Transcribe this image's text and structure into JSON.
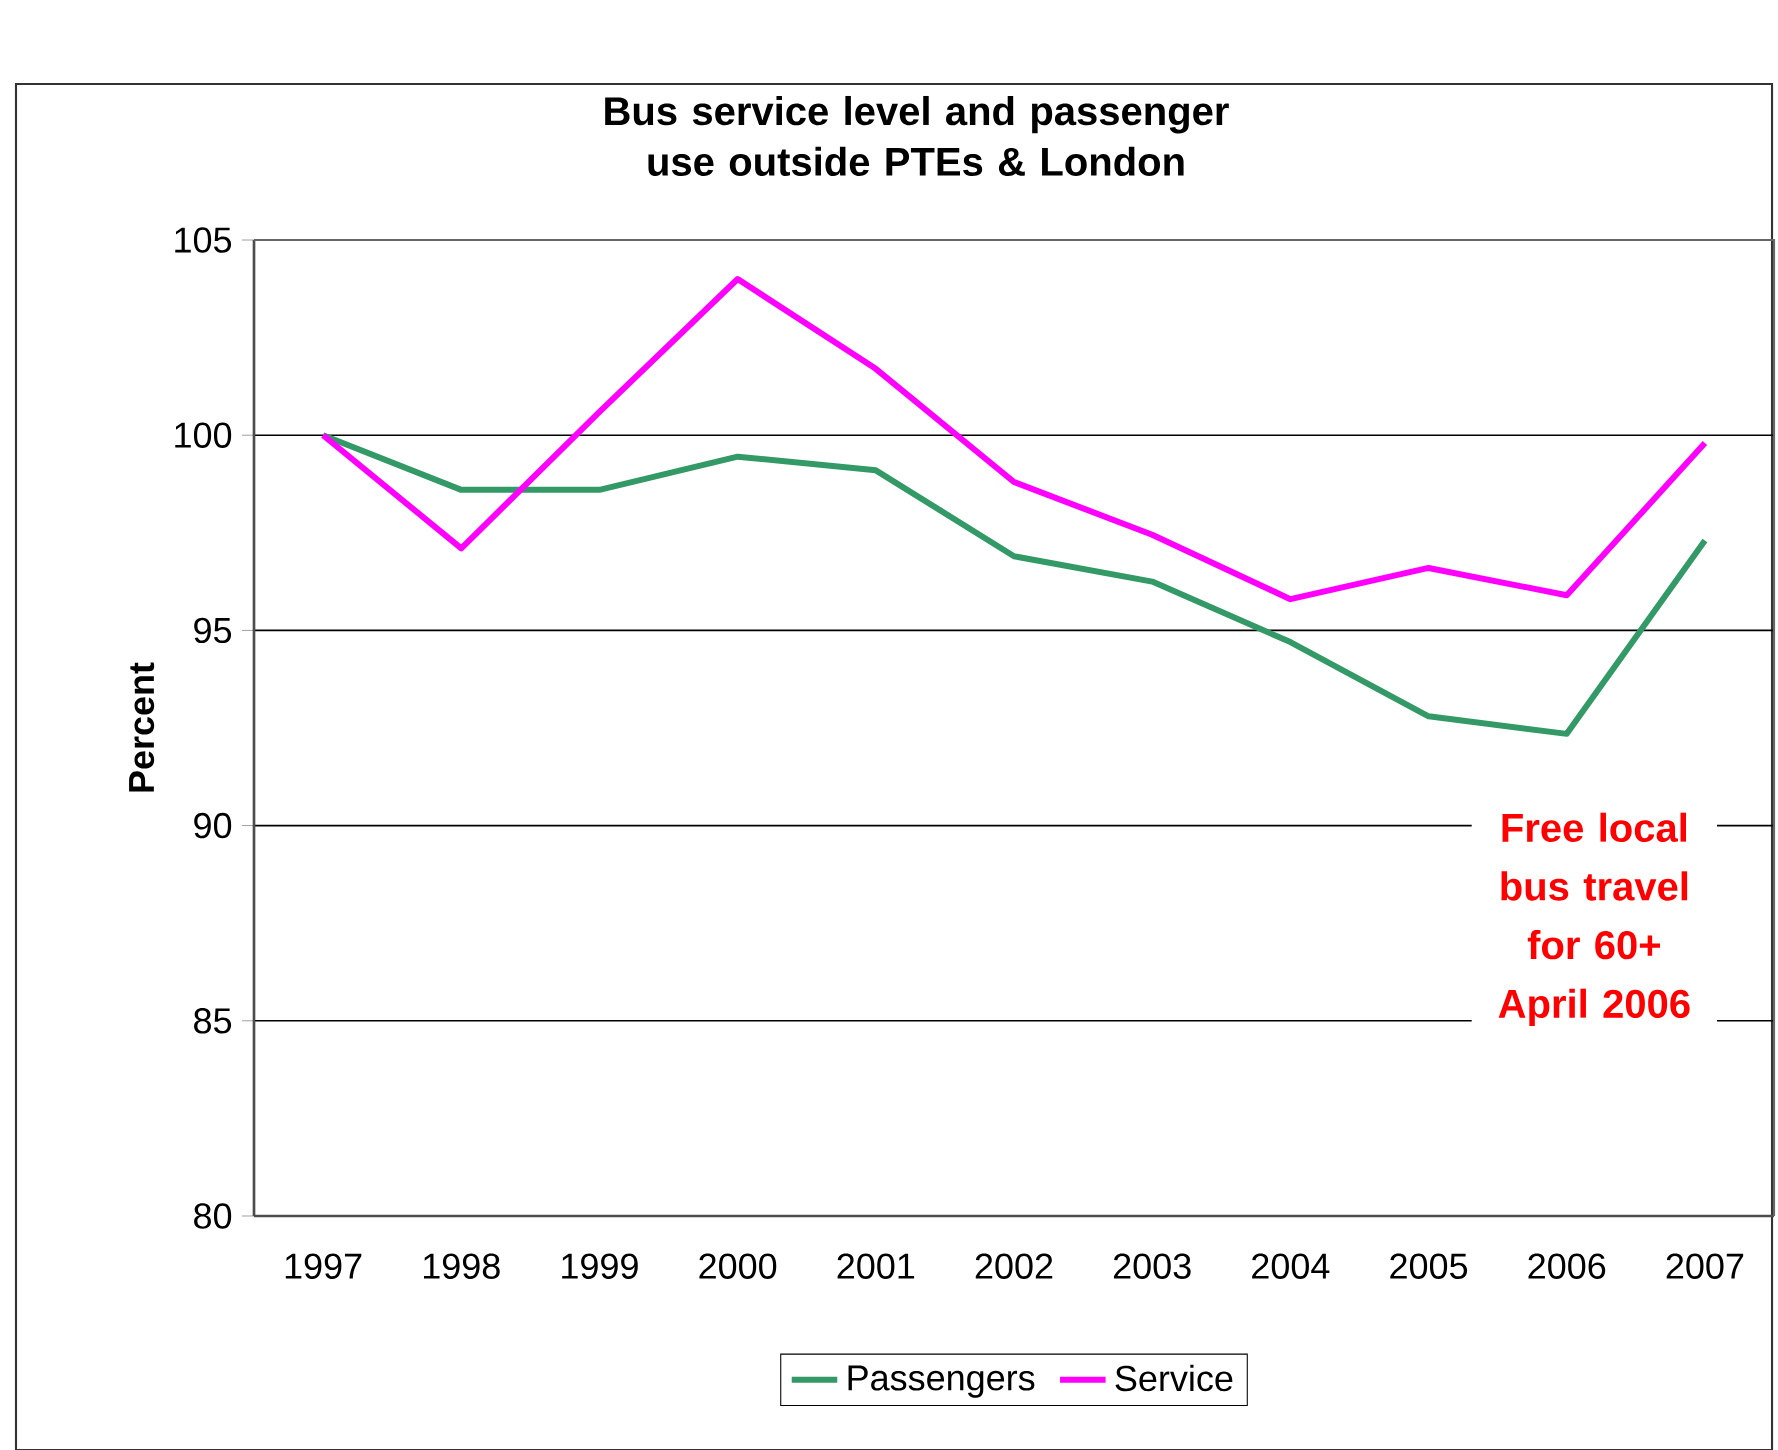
{
  "chart_data": {
    "type": "line",
    "title": "Bus service level and passenger use outside PTEs & London",
    "ylabel": "Percent",
    "categories": [
      "1997",
      "1998",
      "1999",
      "2000",
      "2001",
      "2002",
      "2003",
      "2004",
      "2005",
      "2006",
      "2007"
    ],
    "series": [
      {
        "name": "Passengers",
        "color": "#339966",
        "values": [
          100,
          98.6,
          98.6,
          99.45,
          99.1,
          96.9,
          96.25,
          94.7,
          92.8,
          92.35,
          97.3
        ]
      },
      {
        "name": "Service",
        "color": "#ff00ff",
        "values": [
          100,
          97.1,
          100.6,
          104.0,
          101.7,
          98.8,
          97.45,
          95.8,
          96.6,
          95.9,
          99.8
        ]
      }
    ],
    "ylim": [
      80,
      105
    ],
    "yticks": [
      80,
      85,
      90,
      95,
      100,
      105
    ],
    "grid": "y",
    "legend": "bottom",
    "marker": "none",
    "line_style": "solid",
    "annotations": [
      "Free local bus travel for 60+ April 2006"
    ]
  }
}
